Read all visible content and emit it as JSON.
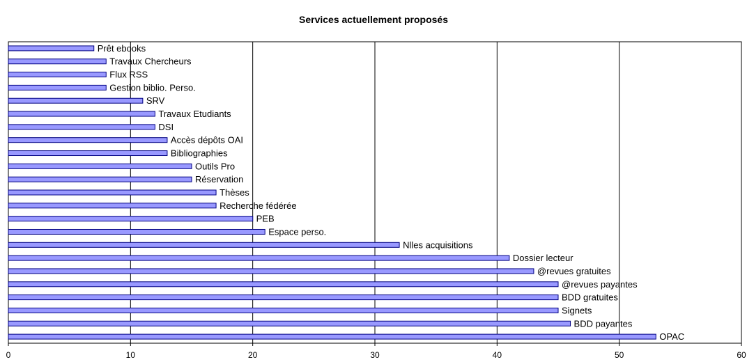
{
  "chart_data": {
    "type": "bar",
    "orientation": "horizontal",
    "title": "Services actuellement proposés",
    "xlabel": "",
    "ylabel": "",
    "xlim": [
      0,
      60
    ],
    "xticks": [
      0,
      10,
      20,
      30,
      40,
      50,
      60
    ],
    "grid": "vertical",
    "legend": "none",
    "colors": {
      "bar_fill": "#9999ff",
      "bar_stroke": "#000080",
      "grid": "#000000"
    },
    "categories": [
      "Prêt ebooks",
      "Travaux Chercheurs",
      "Flux RSS",
      "Gestion biblio. Perso.",
      "SRV",
      "Travaux Etudiants",
      "DSI",
      "Accès dépôts OAI",
      "Bibliographies",
      "Outils Pro",
      "Réservation",
      "Thèses",
      "Recherche fédérée",
      "PEB",
      "Espace perso.",
      "Nlles acquisitions",
      "Dossier lecteur",
      "@revues gratuites",
      "@revues payantes",
      "BDD gratuites",
      "Signets",
      "BDD payantes",
      "OPAC"
    ],
    "values": [
      7,
      8,
      8,
      8,
      11,
      12,
      12,
      13,
      13,
      15,
      15,
      17,
      17,
      20,
      21,
      32,
      41,
      43,
      45,
      45,
      45,
      46,
      53
    ]
  }
}
